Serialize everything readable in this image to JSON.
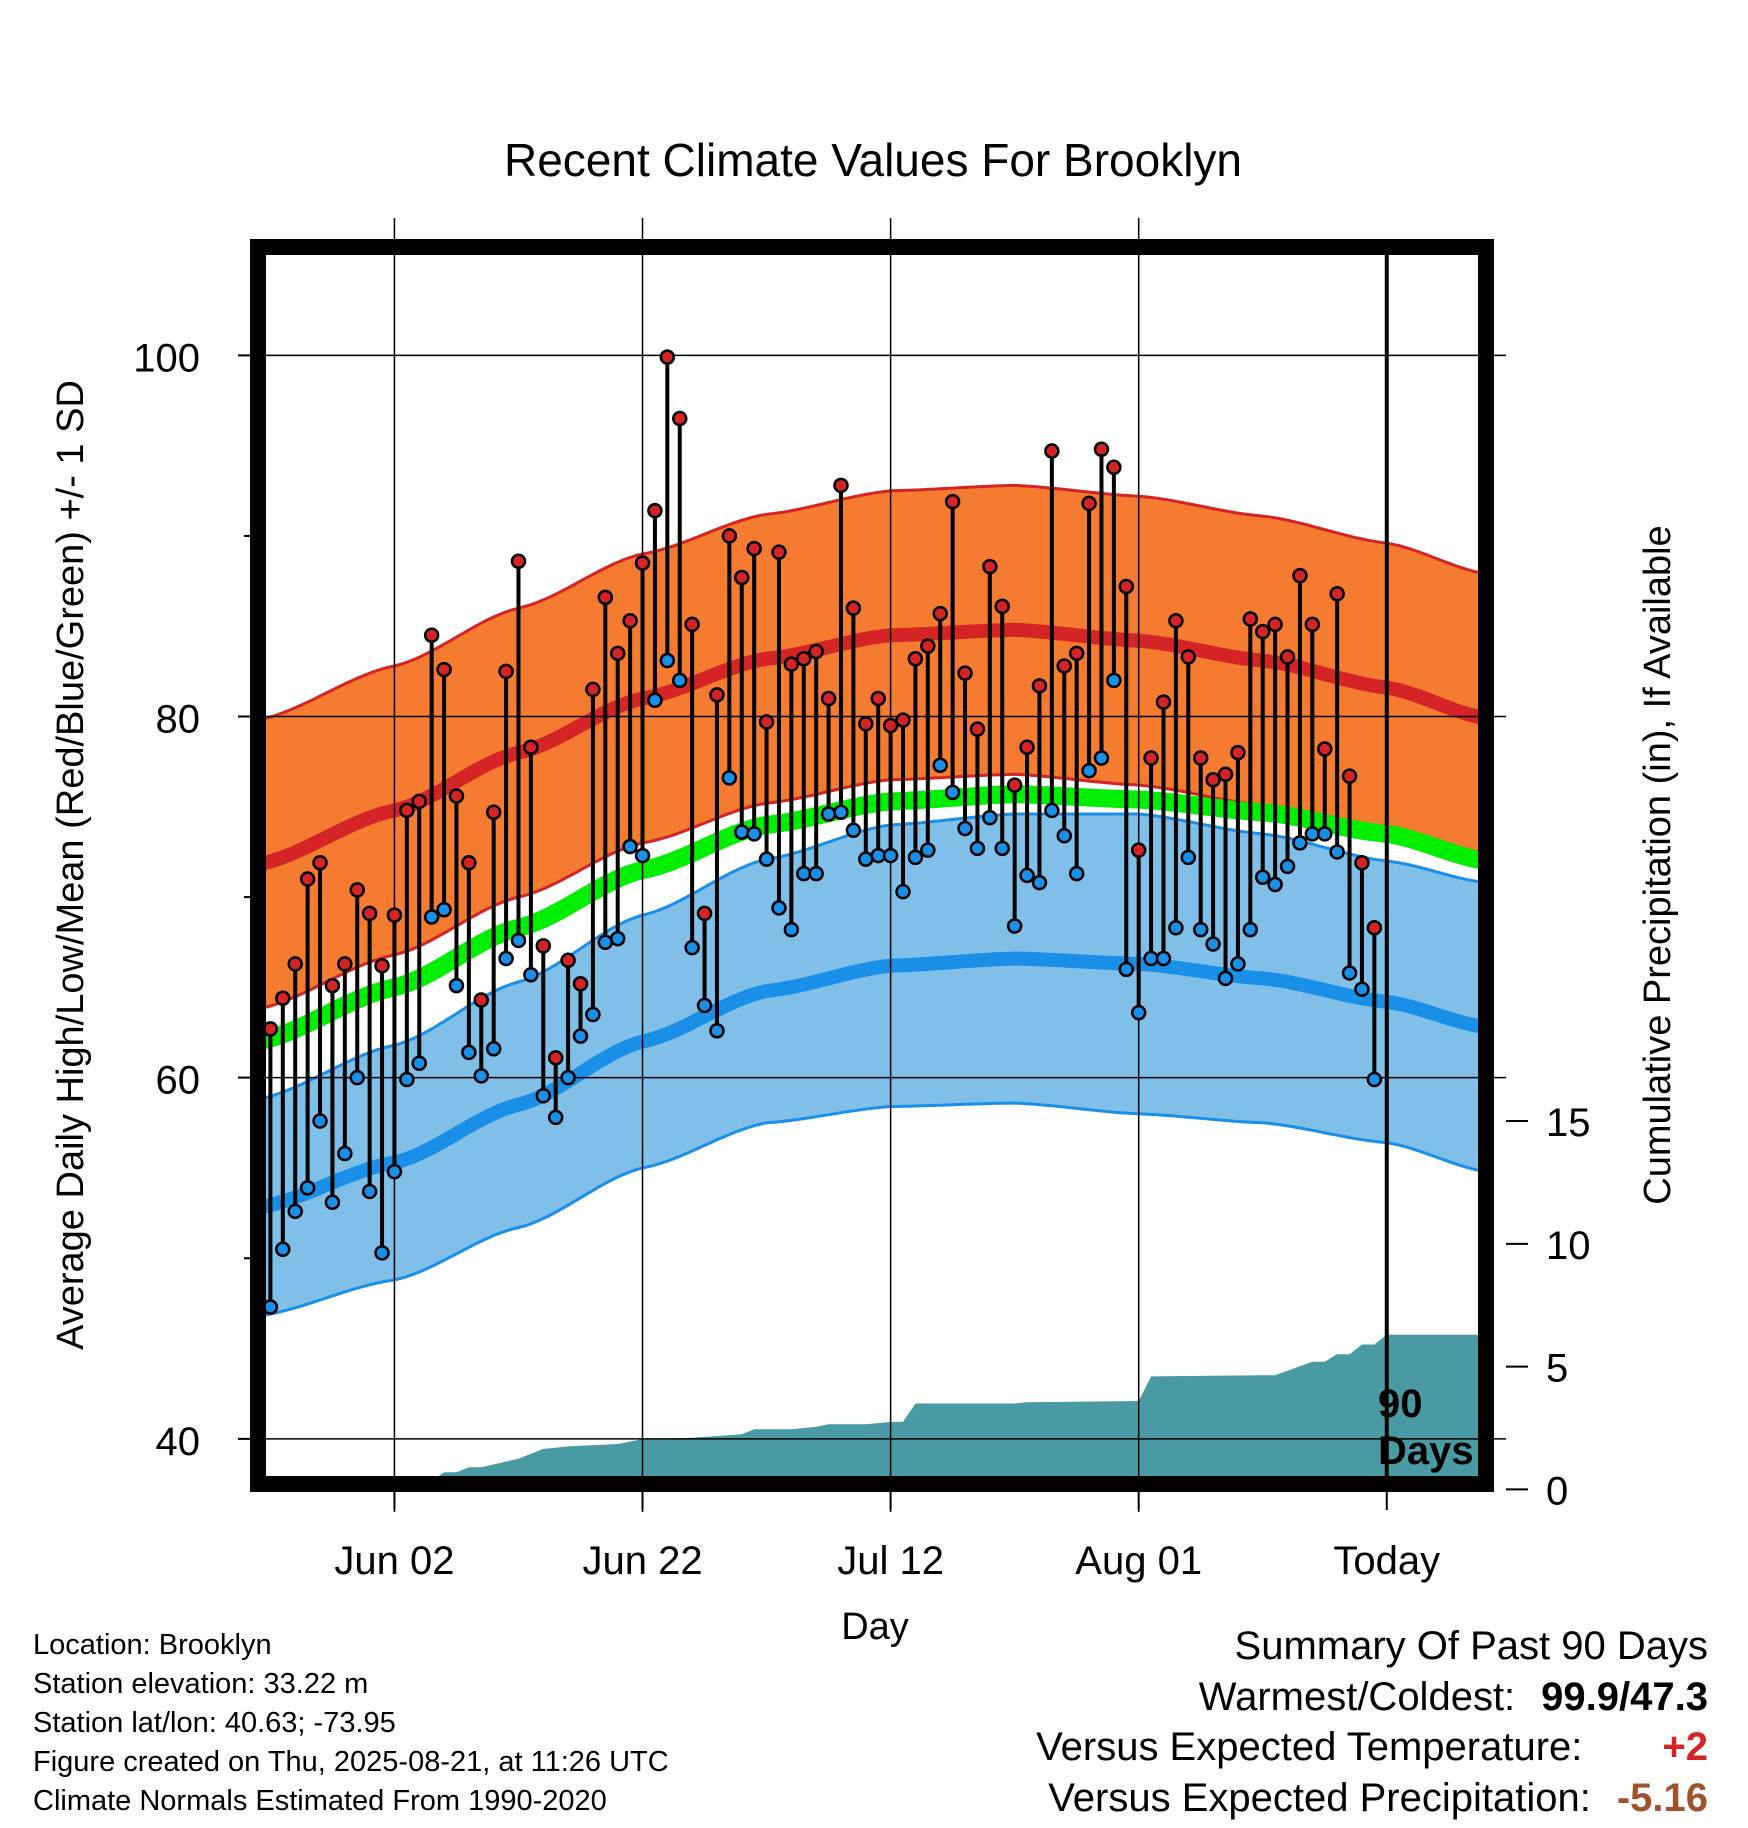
{
  "chart_data": {
    "type": "line",
    "title": "Recent Climate Values For Brooklyn",
    "xlabel": "Day",
    "ylabel": "Average Daily High/Low/Mean (Red/Blue/Green) +/- 1 SD",
    "y2label": "Cumulative Precipitation (in), If Available",
    "x_tick_labels": [
      "Jun 02",
      "Jun 22",
      "Jul 12",
      "Aug 01",
      "Today"
    ],
    "x_tick_days": [
      10,
      30,
      50,
      70,
      90
    ],
    "xlim": [
      -1,
      98
    ],
    "ylim": [
      37.5,
      106
    ],
    "y_ticks": [
      40,
      60,
      80,
      100
    ],
    "y_minor_ticks": [
      50,
      70,
      90
    ],
    "y2_ticks": [
      0,
      5,
      10,
      15
    ],
    "y2_scale": "0 in at y=37.2 temp units, 5 in per 6.8 temp units",
    "today_marker": {
      "day": 90,
      "label_line1": "90",
      "label_line2": "Days"
    },
    "normals": {
      "days": [
        -1,
        10,
        20,
        30,
        40,
        50,
        60,
        70,
        80,
        90,
        98
      ],
      "high_mean": [
        71.8,
        74.8,
        78.0,
        81.0,
        83.2,
        84.5,
        84.8,
        84.2,
        83.1,
        81.6,
        79.9
      ],
      "high_sd": 8.0,
      "low_mean": [
        52.8,
        55.3,
        58.5,
        62.0,
        64.8,
        66.2,
        66.6,
        66.3,
        65.5,
        64.2,
        62.8
      ],
      "low_sd": [
        6.0,
        6.5,
        6.8,
        7.0,
        7.3,
        7.8,
        8.0,
        8.3,
        8.0,
        7.8,
        8.0
      ],
      "mean": [
        62.0,
        65.0,
        68.3,
        71.5,
        74.0,
        75.3,
        75.7,
        75.4,
        74.7,
        73.5,
        72.0
      ]
    },
    "series": [
      {
        "name": "High",
        "color": "#d42425",
        "values": [
          62.7,
          64.4,
          66.3,
          71.0,
          71.9,
          65.1,
          66.3,
          70.4,
          69.1,
          66.2,
          69.0,
          74.8,
          75.3,
          84.5,
          82.6,
          75.6,
          71.9,
          64.3,
          74.7,
          82.5,
          88.6,
          78.3,
          67.3,
          61.1,
          66.5,
          65.2,
          81.5,
          86.6,
          83.5,
          85.3,
          88.5,
          91.4,
          99.9,
          96.5,
          85.1,
          69.1,
          81.2,
          90.0,
          87.7,
          89.3,
          79.7,
          89.1,
          82.9,
          83.2,
          83.6,
          81.0,
          92.8,
          86.0,
          79.6,
          81.0,
          79.5,
          79.8,
          83.2,
          83.9,
          85.7,
          91.9,
          82.4,
          79.3,
          88.3,
          86.1,
          76.2,
          78.3,
          81.7,
          94.7,
          82.8,
          83.5,
          91.8,
          94.8,
          93.8,
          87.2,
          72.6,
          77.7,
          80.8,
          85.3,
          83.3,
          77.7,
          76.5,
          76.8,
          78.0,
          85.4,
          84.7,
          85.1,
          83.3,
          87.8,
          85.1,
          78.2,
          86.8,
          76.7,
          71.9,
          68.3
        ]
      },
      {
        "name": "Low",
        "color": "#1a8fe8",
        "values": [
          47.3,
          50.5,
          52.6,
          53.9,
          57.6,
          53.1,
          55.8,
          60.0,
          53.7,
          50.3,
          54.8,
          59.9,
          60.8,
          68.9,
          69.3,
          65.1,
          61.4,
          60.1,
          61.6,
          66.6,
          67.6,
          65.7,
          59.0,
          57.8,
          60.0,
          62.3,
          63.5,
          67.5,
          67.7,
          72.8,
          72.3,
          80.9,
          83.1,
          82.0,
          67.2,
          64.0,
          62.6,
          76.6,
          73.6,
          73.5,
          72.1,
          69.4,
          68.2,
          71.3,
          71.3,
          74.6,
          74.7,
          73.7,
          72.1,
          72.3,
          72.3,
          70.3,
          72.2,
          72.6,
          77.3,
          75.8,
          73.8,
          72.7,
          74.4,
          72.7,
          68.4,
          71.2,
          70.8,
          74.8,
          73.4,
          71.3,
          77.0,
          77.7,
          82.0,
          66.0,
          63.6,
          66.6,
          66.6,
          68.3,
          72.2,
          68.2,
          67.4,
          65.5,
          66.3,
          68.2,
          71.1,
          70.7,
          71.7,
          73.0,
          73.5,
          73.5,
          72.5,
          65.8,
          64.9,
          59.9
        ]
      }
    ],
    "precipitation": {
      "name": "Cumulative Precipitation",
      "days": [
        -1,
        6,
        7,
        13,
        14,
        15,
        16,
        17,
        20,
        21,
        22,
        23,
        24,
        28,
        29,
        30,
        34,
        38,
        39,
        42,
        44,
        45,
        48,
        50,
        51,
        52,
        60,
        61,
        70,
        71,
        80,
        81,
        84,
        85,
        86,
        87,
        88,
        89,
        90,
        98
      ],
      "values": [
        0,
        0.05,
        0.35,
        0.35,
        0.7,
        0.7,
        0.9,
        0.9,
        1.25,
        1.45,
        1.65,
        1.7,
        1.75,
        1.85,
        1.95,
        2.05,
        2.1,
        2.25,
        2.45,
        2.45,
        2.55,
        2.65,
        2.65,
        2.75,
        2.75,
        3.5,
        3.5,
        3.55,
        3.6,
        4.6,
        4.65,
        4.65,
        5.2,
        5.2,
        5.5,
        5.5,
        5.9,
        5.9,
        6.3,
        6.3
      ],
      "color": "#4a9aa3"
    },
    "legend": "none",
    "grid": true
  },
  "info": {
    "location": "Location: Brooklyn",
    "elevation": "Station elevation: 33.22 m",
    "latlon": "Station lat/lon: 40.63; -73.95",
    "created": "Figure created on Thu, 2025-08-21, at 11:26 UTC",
    "normals": "Climate Normals Estimated From 1990-2020"
  },
  "summary": {
    "heading": "Summary Of Past 90 Days",
    "warmest_label": "Warmest/Coldest:",
    "warmest_value": "99.9/47.3",
    "temp_label": "Versus Expected Temperature:",
    "temp_value": "+2",
    "temp_color": "#d42425",
    "precip_label": "Versus Expected Precipitation:",
    "precip_value": "-5.16",
    "precip_color": "#a0522d"
  },
  "colors": {
    "high_band": "#f47b30",
    "high_line": "#d42425",
    "low_band": "#7fbfe8",
    "low_line": "#1a8fe8",
    "mean_line": "#00ee00",
    "precip": "#4a9aa3"
  }
}
